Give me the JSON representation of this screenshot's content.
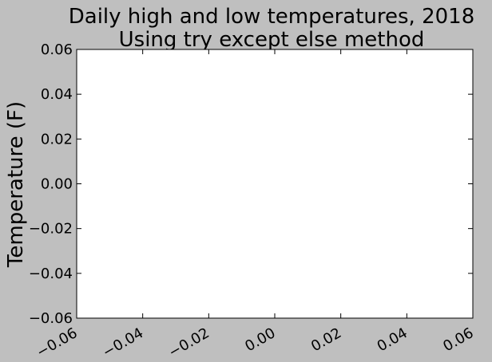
{
  "chart_data": {
    "type": "line",
    "title_lines": [
      "Daily high and low temperatures, 2018",
      "Using try except else method"
    ],
    "xlabel": "",
    "ylabel": "Temperature (F)",
    "xlim": [
      -0.06,
      0.06
    ],
    "ylim": [
      -0.06,
      0.06
    ],
    "xticks": [
      "−0.06",
      "−0.04",
      "−0.02",
      "0.00",
      "0.02",
      "0.04",
      "0.06"
    ],
    "yticks": [
      "−0.06",
      "−0.04",
      "−0.02",
      "0.00",
      "0.02",
      "0.04",
      "0.06"
    ],
    "series": [],
    "grid": false,
    "legend": "none",
    "colors": {
      "background": "#bfbfbf",
      "plot_area": "#ffffff",
      "axes": "#000000"
    }
  }
}
